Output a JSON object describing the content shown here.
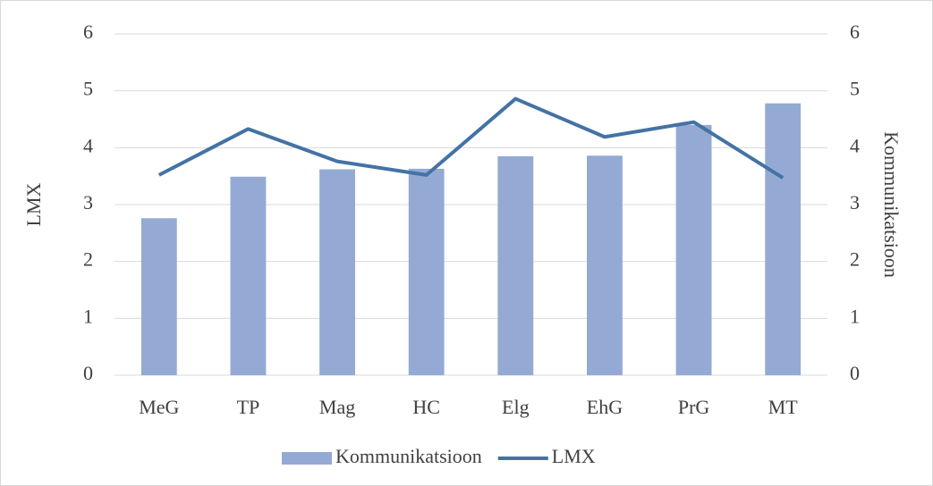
{
  "chart_data": {
    "type": "combo",
    "categories": [
      "MeG",
      "TP",
      "Mag",
      "HC",
      "Elg",
      "EhG",
      "PrG",
      "MT"
    ],
    "series": [
      {
        "name": "Kommunikatsioon",
        "type": "bar",
        "axis": "y2",
        "color": "#94aad4",
        "values": [
          2.76,
          3.49,
          3.62,
          3.63,
          3.85,
          3.86,
          4.4,
          4.78
        ]
      },
      {
        "name": "LMX",
        "type": "line",
        "color": "#4472a4",
        "values": [
          3.52,
          4.33,
          3.76,
          3.52,
          4.86,
          4.19,
          4.45,
          3.47
        ]
      }
    ],
    "ylabel": "LMX",
    "y2label": "Kommunikatsioon",
    "ylim": [
      0,
      6
    ],
    "yticks": [
      0,
      1,
      2,
      3,
      4,
      5,
      6
    ],
    "y2lim": [
      0,
      6
    ],
    "y2ticks": [
      0,
      1,
      2,
      3,
      4,
      5,
      6
    ],
    "grid": true,
    "legend": "bottom"
  }
}
